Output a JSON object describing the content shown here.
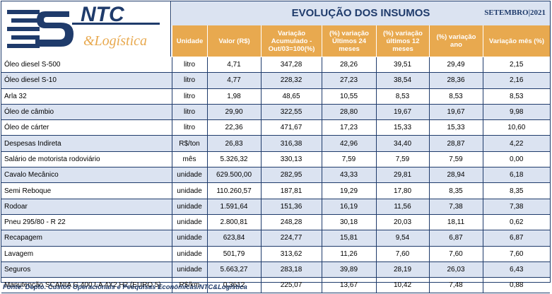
{
  "logo": {
    "brand": "NTC",
    "tagline": "&Logística"
  },
  "header": {
    "title": "EVOLUÇÃO DOS INSUMOS",
    "date": "SETEMBRO|2021",
    "columns": [
      "Unidade",
      "Valor (R$)",
      "Variação Acumulado - Out/03=100(%)",
      "(%) variação Últimos 24 meses",
      "(%) variação últimos 12 meses",
      "(%) variação ano",
      "Variação mês (%)"
    ]
  },
  "rows": [
    {
      "item": "Óleo diesel S-500",
      "unit": "litro",
      "value": "4,71",
      "acc": "347,28",
      "v24": "28,26",
      "v12": "39,51",
      "year": "29,49",
      "month": "2,15"
    },
    {
      "item": "Óleo diesel S-10",
      "unit": "litro",
      "value": "4,77",
      "acc": "228,32",
      "v24": "27,23",
      "v12": "38,54",
      "year": "28,36",
      "month": "2,16"
    },
    {
      "item": "Arla 32",
      "unit": "litro",
      "value": "1,98",
      "acc": "48,65",
      "v24": "10,55",
      "v12": "8,53",
      "year": "8,53",
      "month": "8,53"
    },
    {
      "item": "Óleo de câmbio",
      "unit": "litro",
      "value": "29,90",
      "acc": "322,55",
      "v24": "28,80",
      "v12": "19,67",
      "year": "19,67",
      "month": "9,98"
    },
    {
      "item": "Óleo de cárter",
      "unit": "litro",
      "value": "22,36",
      "acc": "471,67",
      "v24": "17,23",
      "v12": "15,33",
      "year": "15,33",
      "month": "10,60"
    },
    {
      "item": "Despesas Indireta",
      "unit": "R$/ton",
      "value": "26,83",
      "acc": "316,38",
      "v24": "42,96",
      "v12": "34,40",
      "year": "28,87",
      "month": "4,22"
    },
    {
      "item": "Salário de motorista rodoviário",
      "unit": "mês",
      "value": "5.326,32",
      "acc": "330,13",
      "v24": "7,59",
      "v12": "7,59",
      "year": "7,59",
      "month": "0,00"
    },
    {
      "item": "Cavalo Mecânico",
      "unit": "unidade",
      "value": "629.500,00",
      "acc": "282,95",
      "v24": "43,33",
      "v12": "29,81",
      "year": "28,94",
      "month": "6,18"
    },
    {
      "item": "Semi Reboque",
      "unit": "unidade",
      "value": "110.260,57",
      "acc": "187,81",
      "v24": "19,29",
      "v12": "17,80",
      "year": "8,35",
      "month": "8,35"
    },
    {
      "item": "Rodoar",
      "unit": "unidade",
      "value": "1.591,64",
      "acc": "151,36",
      "v24": "16,19",
      "v12": "11,56",
      "year": "7,38",
      "month": "7,38"
    },
    {
      "item": "Pneu 295/80 - R 22",
      "unit": "unidade",
      "value": "2.800,81",
      "acc": "248,28",
      "v24": "30,18",
      "v12": "20,03",
      "year": "18,11",
      "month": "0,62"
    },
    {
      "item": "Recapagem",
      "unit": "unidade",
      "value": "623,84",
      "acc": "224,77",
      "v24": "15,81",
      "v12": "9,54",
      "year": "6,87",
      "month": "6,87"
    },
    {
      "item": "Lavagem",
      "unit": "unidade",
      "value": "501,79",
      "acc": "313,62",
      "v24": "11,26",
      "v12": "7,60",
      "year": "7,60",
      "month": "7,60"
    },
    {
      "item": "Seguros",
      "unit": "unidade",
      "value": "5.663,27",
      "acc": "283,18",
      "v24": "39,89",
      "v12": "28,19",
      "year": "26,03",
      "month": "6,43"
    },
    {
      "item": "Manutenção SCANIA G 400 LA 4X2 H2 (EURO 5)",
      "unit": "R$/km",
      "value": "0,3612",
      "acc": "225,07",
      "v24": "13,67",
      "v12": "10,42",
      "year": "7,48",
      "month": "0,88"
    }
  ],
  "footer": {
    "source": "Fonte: Depto. Custos Operacionais e Pesquisas Econômicas/NTC&Logística"
  }
}
